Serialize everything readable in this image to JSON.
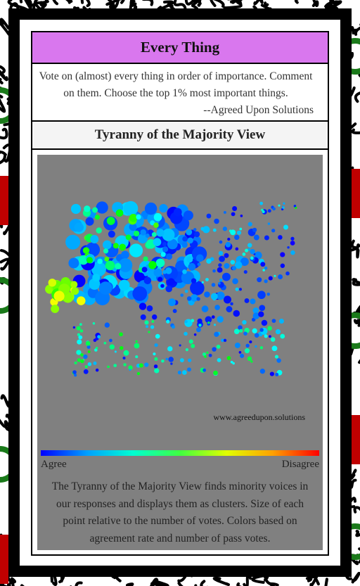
{
  "header": {
    "title": "Every Thing"
  },
  "description": {
    "text": "Vote on (almost) every thing in order of importance. Comment on them. Choose the top 1% most important things.",
    "attribution": "--Agreed Upon Solutions"
  },
  "view": {
    "title": "Tyranny of the Majority View"
  },
  "plot": {
    "watermark": "www.agreedupon.solutions",
    "caption": "The Tyranny of the Majority View finds minority voices in our responses and displays them as clusters. Size of each point relative to the number of votes. Colors based on agreement rate and number of pass votes."
  },
  "legend": {
    "low": "Agree",
    "high": "Disagree"
  }
}
